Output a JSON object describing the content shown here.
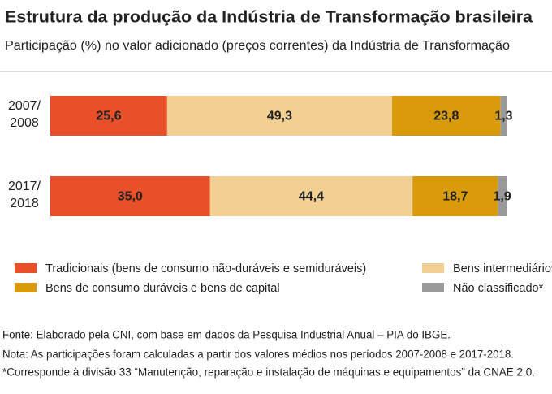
{
  "chart_data": {
    "type": "stacked-bar-horizontal",
    "title": "Estrutura da produção da Indústria de Transformação brasileira",
    "subtitle": "Participação (%) no valor adicionado (preços correntes) da Indústria de Transformação",
    "categories": [
      "2007/\n2008",
      "2017/\n2018"
    ],
    "xlim": [
      0,
      100
    ],
    "series": [
      {
        "name": "Tradicionais (bens de consumo não-duráveis e semiduráveis)",
        "color": "#e8502a",
        "values": [
          25.6,
          35.0
        ],
        "value_labels": [
          "25,6",
          "35,0"
        ]
      },
      {
        "name": "Bens intermediários",
        "color": "#f2cf92",
        "values": [
          49.3,
          44.4
        ],
        "value_labels": [
          "49,3",
          "44,4"
        ]
      },
      {
        "name": "Bens de consumo duráveis e bens de capital",
        "color": "#d99a0c",
        "values": [
          23.8,
          18.7
        ],
        "value_labels": [
          "23,8",
          "18,7"
        ]
      },
      {
        "name": "Não classificado*",
        "color": "#999999",
        "values": [
          1.3,
          1.9
        ],
        "value_labels": [
          "1,3",
          "1,9"
        ]
      }
    ],
    "footnotes": [
      "Fonte: Elaborado pela CNI, com base em dados da Pesquisa Industrial Anual – PIA do IBGE.",
      "Nota: As participações foram calculadas a partir dos valores médios nos períodos 2007-2008 e 2017-2018.",
      "*Corresponde à divisão 33 “Manutenção, reparação e instalação de máquinas e equipamentos” da CNAE 2.0."
    ]
  }
}
